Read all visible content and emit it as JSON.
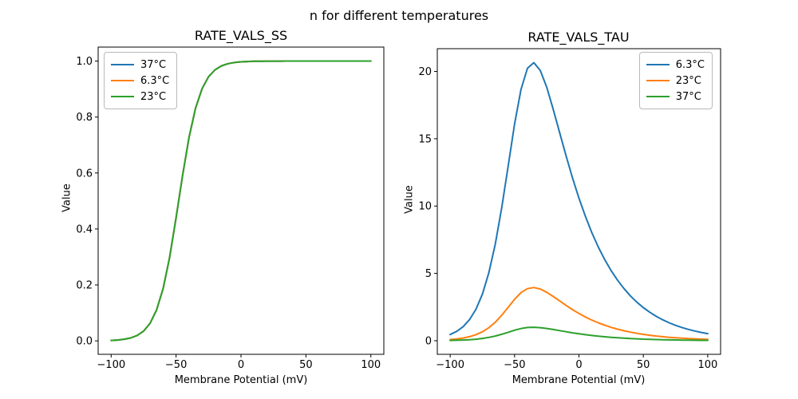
{
  "title": "n for different temperatures",
  "colors": {
    "blue": "#1f77b4",
    "orange": "#ff7f0e",
    "green": "#2ca02c",
    "axis": "#000000",
    "background": "#ffffff"
  },
  "chart_data": [
    {
      "type": "line",
      "title": "RATE_VALS_SS",
      "xlabel": "Membrane Potential (mV)",
      "ylabel": "Value",
      "xlim": [
        -110,
        110
      ],
      "ylim": [
        -0.048,
        1.05
      ],
      "xticks": [
        -100,
        -50,
        0,
        50,
        100
      ],
      "yticks": [
        0.0,
        0.2,
        0.4,
        0.6,
        0.8,
        1.0
      ],
      "xtick_decimals": 0,
      "ytick_decimals": 1,
      "grid": false,
      "legend_position": "upper left",
      "x": [
        -100,
        -95,
        -90,
        -85,
        -80,
        -75,
        -70,
        -65,
        -60,
        -55,
        -50,
        -45,
        -40,
        -35,
        -30,
        -25,
        -20,
        -15,
        -10,
        -5,
        0,
        5,
        10,
        15,
        20,
        25,
        30,
        35,
        40,
        45,
        50,
        55,
        60,
        65,
        70,
        75,
        80,
        85,
        90,
        95,
        100
      ],
      "series": [
        {
          "name": "37°C",
          "color": "#1f77b4",
          "values": [
            0.0017,
            0.0031,
            0.0058,
            0.0106,
            0.0193,
            0.0351,
            0.063,
            0.1106,
            0.1867,
            0.2977,
            0.439,
            0.591,
            0.7275,
            0.8313,
            0.901,
            0.9438,
            0.9688,
            0.9829,
            0.9906,
            0.9949,
            0.9972,
            0.9985,
            0.9992,
            0.9996,
            0.9998,
            0.9999,
            0.9999,
            1.0,
            1.0,
            1.0,
            1.0,
            1.0,
            1.0,
            1.0,
            1.0,
            1.0,
            1.0,
            1.0,
            1.0,
            1.0,
            1.0
          ]
        },
        {
          "name": "6.3°C",
          "color": "#ff7f0e",
          "values": [
            0.0017,
            0.0031,
            0.0058,
            0.0106,
            0.0193,
            0.0351,
            0.063,
            0.1106,
            0.1867,
            0.2977,
            0.439,
            0.591,
            0.7275,
            0.8313,
            0.901,
            0.9438,
            0.9688,
            0.9829,
            0.9906,
            0.9949,
            0.9972,
            0.9985,
            0.9992,
            0.9996,
            0.9998,
            0.9999,
            0.9999,
            1.0,
            1.0,
            1.0,
            1.0,
            1.0,
            1.0,
            1.0,
            1.0,
            1.0,
            1.0,
            1.0,
            1.0,
            1.0,
            1.0
          ]
        },
        {
          "name": "23°C",
          "color": "#2ca02c",
          "values": [
            0.0017,
            0.0031,
            0.0058,
            0.0106,
            0.0193,
            0.0351,
            0.063,
            0.1106,
            0.1867,
            0.2977,
            0.439,
            0.591,
            0.7275,
            0.8313,
            0.901,
            0.9438,
            0.9688,
            0.9829,
            0.9906,
            0.9949,
            0.9972,
            0.9985,
            0.9992,
            0.9996,
            0.9998,
            0.9999,
            0.9999,
            1.0,
            1.0,
            1.0,
            1.0,
            1.0,
            1.0,
            1.0,
            1.0,
            1.0,
            1.0,
            1.0,
            1.0,
            1.0,
            1.0
          ]
        }
      ]
    },
    {
      "type": "line",
      "title": "RATE_VALS_TAU",
      "xlabel": "Membrane Potential (mV)",
      "ylabel": "Value",
      "xlim": [
        -110,
        110
      ],
      "ylim": [
        -1.01,
        21.69
      ],
      "xticks": [
        -100,
        -50,
        0,
        50,
        100
      ],
      "yticks": [
        0,
        5,
        10,
        15,
        20
      ],
      "xtick_decimals": 0,
      "ytick_decimals": 0,
      "grid": false,
      "legend_position": "upper right",
      "x": [
        -100,
        -95,
        -90,
        -85,
        -80,
        -75,
        -70,
        -65,
        -60,
        -55,
        -50,
        -45,
        -40,
        -35,
        -30,
        -25,
        -20,
        -15,
        -10,
        -5,
        0,
        5,
        10,
        15,
        20,
        25,
        30,
        35,
        40,
        45,
        50,
        55,
        60,
        65,
        70,
        75,
        80,
        85,
        90,
        95,
        100
      ],
      "series": [
        {
          "name": "6.3°C",
          "color": "#1f77b4",
          "values": [
            0.457,
            0.69,
            1.04,
            1.561,
            2.33,
            3.45,
            5.03,
            7.159,
            9.869,
            12.972,
            16.082,
            18.669,
            20.238,
            20.655,
            20.066,
            18.813,
            17.199,
            15.455,
            13.726,
            12.092,
            10.591,
            9.237,
            8.03,
            6.963,
            6.025,
            5.205,
            4.49,
            3.868,
            3.329,
            2.863,
            2.46,
            2.113,
            1.813,
            1.555,
            1.334,
            1.143,
            0.98,
            0.839,
            0.719,
            0.615,
            0.527
          ]
        },
        {
          "name": "23°C",
          "color": "#ff7f0e",
          "values": [
            0.087,
            0.132,
            0.199,
            0.299,
            0.446,
            0.66,
            0.962,
            1.369,
            1.887,
            2.48,
            3.075,
            3.57,
            3.87,
            3.95,
            3.837,
            3.597,
            3.289,
            2.955,
            2.625,
            2.312,
            2.025,
            1.766,
            1.535,
            1.331,
            1.152,
            0.995,
            0.859,
            0.74,
            0.637,
            0.547,
            0.47,
            0.404,
            0.347,
            0.297,
            0.255,
            0.219,
            0.187,
            0.16,
            0.137,
            0.118,
            0.101
          ]
        },
        {
          "name": "37°C",
          "color": "#2ca02c",
          "values": [
            0.022,
            0.033,
            0.05,
            0.076,
            0.113,
            0.167,
            0.244,
            0.347,
            0.478,
            0.628,
            0.779,
            0.904,
            0.98,
            1.0,
            0.972,
            0.911,
            0.833,
            0.748,
            0.665,
            0.586,
            0.513,
            0.447,
            0.389,
            0.337,
            0.292,
            0.252,
            0.217,
            0.187,
            0.161,
            0.139,
            0.119,
            0.102,
            0.088,
            0.075,
            0.065,
            0.055,
            0.047,
            0.041,
            0.035,
            0.03,
            0.026
          ]
        }
      ]
    }
  ]
}
